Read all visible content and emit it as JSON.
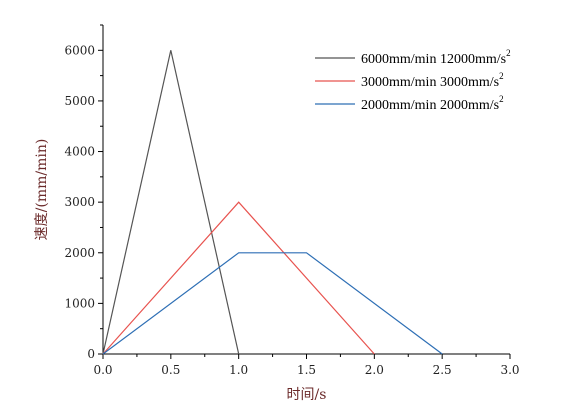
{
  "chart_data": {
    "type": "line",
    "xlabel": "时间/s",
    "ylabel": "速度/(mm/min)",
    "xlim": [
      0,
      3.0
    ],
    "ylim": [
      0,
      6500
    ],
    "x_ticks": [
      0.0,
      0.5,
      1.0,
      1.5,
      2.0,
      2.5,
      3.0
    ],
    "x_tick_labels": [
      "0.0",
      "0.5",
      "1.0",
      "1.5",
      "2.0",
      "2.5",
      "3.0"
    ],
    "y_ticks": [
      0,
      1000,
      2000,
      3000,
      4000,
      5000,
      6000
    ],
    "y_tick_labels": [
      "0",
      "1000",
      "2000",
      "3000",
      "4000",
      "5000",
      "6000"
    ],
    "grid": false,
    "legend_position": "top-right",
    "series": [
      {
        "name": "6000mm/min 12000mm/s",
        "name_superscript": "2",
        "color": "#555555",
        "x": [
          0,
          0.5,
          1.0
        ],
        "y": [
          0,
          6000,
          0
        ]
      },
      {
        "name": "3000mm/min 3000mm/s",
        "name_superscript": "2",
        "color": "#e8534f",
        "x": [
          0,
          1.0,
          2.0
        ],
        "y": [
          0,
          3000,
          0
        ]
      },
      {
        "name": "2000mm/min 2000mm/s",
        "name_superscript": "2",
        "color": "#2e6fb5",
        "x": [
          0,
          1.0,
          1.5,
          2.5
        ],
        "y": [
          0,
          2000,
          2000,
          0
        ]
      }
    ]
  }
}
